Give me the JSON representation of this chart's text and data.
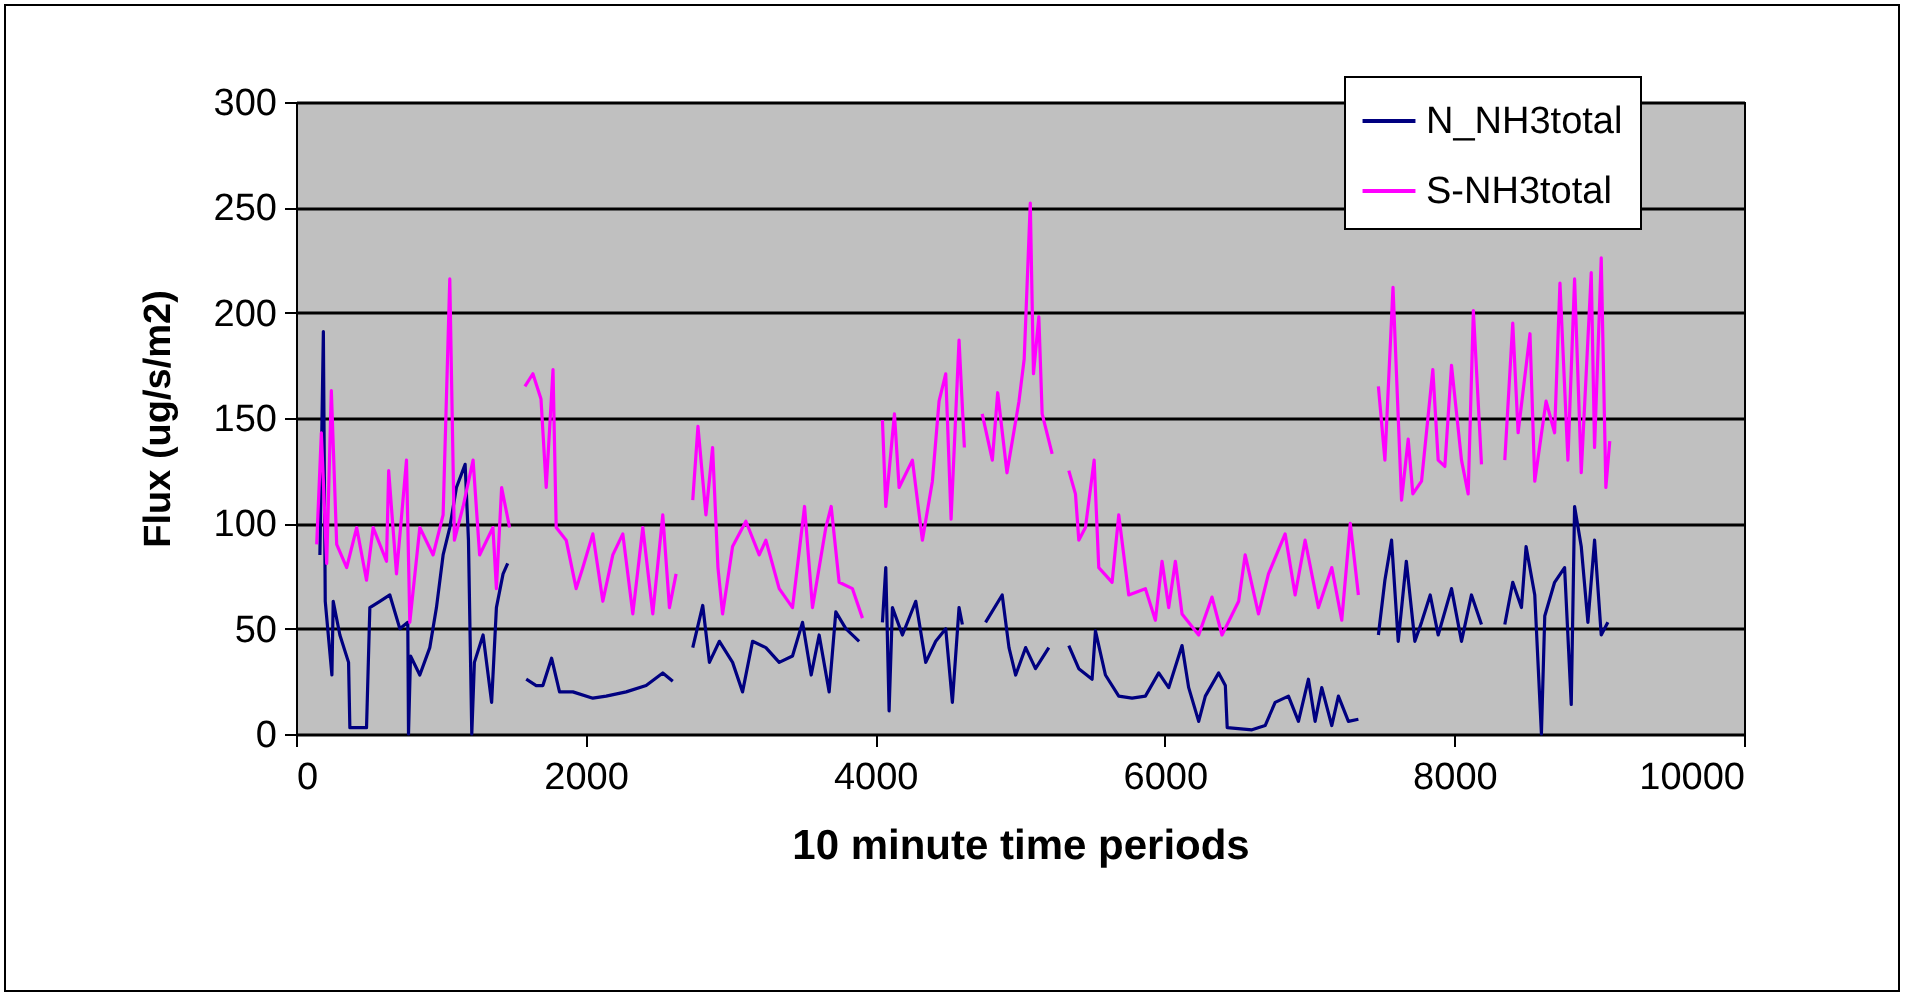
{
  "chart_data": {
    "type": "line",
    "xlabel": "10 minute time periods",
    "ylabel": "Flux (ug/s/m2)",
    "xlim": [
      0,
      10000
    ],
    "xticks": [
      0,
      2000,
      4000,
      6000,
      8000,
      10000
    ],
    "ylim": [
      0,
      300
    ],
    "yticks": [
      0,
      50,
      100,
      150,
      200,
      250,
      300
    ],
    "grid": "y",
    "legend": "top right",
    "marker": "none",
    "line_style": "solid",
    "series": [
      {
        "name": "N_NH3total",
        "color": "#000080",
        "x": [
          165,
          189,
          202,
          248,
          257,
          303,
          363,
          372,
          487,
          510,
          579,
          648,
          717,
          772,
          777,
          791,
          855,
          924,
          970,
          1016,
          1062,
          1108,
          1168,
          1191,
          1214,
          1232,
          1292,
          1351,
          1384,
          1430,
          1462,
          1525,
          1590,
          1659,
          1705,
          1765,
          1820,
          1912,
          2050,
          2142,
          2280,
          2418,
          2533,
          2602,
          2670,
          2740,
          2809,
          2855,
          2924,
          3015,
          3084,
          3153,
          3245,
          3337,
          3429,
          3498,
          3558,
          3613,
          3682,
          3728,
          3797,
          3889,
          3970,
          4050,
          4073,
          4096,
          4119,
          4188,
          4280,
          4349,
          4418,
          4487,
          4533,
          4579,
          4602,
          4680,
          4762,
          4877,
          4924,
          4970,
          5039,
          5107,
          5199,
          5270,
          5337,
          5406,
          5498,
          5521,
          5590,
          5682,
          5774,
          5866,
          5958,
          6027,
          6119,
          6165,
          6234,
          6280,
          6372,
          6418,
          6431,
          6602,
          6693,
          6762,
          6854,
          6923,
          6992,
          7038,
          7084,
          7153,
          7199,
          7268,
          7337,
          7400,
          7475,
          7520,
          7566,
          7612,
          7668,
          7727,
          7773,
          7833,
          7888,
          7980,
          8049,
          8118,
          8187,
          8270,
          8348,
          8403,
          8463,
          8495,
          8555,
          8601,
          8624,
          8692,
          8761,
          8807,
          8830,
          8876,
          8922,
          8968,
          9014,
          9060
        ],
        "values": [
          85,
          191,
          63,
          28,
          63,
          47,
          34,
          3,
          3,
          60,
          63,
          66,
          50,
          53,
          0,
          37,
          28,
          41,
          60,
          85,
          98,
          117,
          128,
          92,
          0,
          34,
          47,
          15,
          60,
          76,
          81,
          null,
          26,
          23,
          23,
          36,
          20,
          20,
          17,
          18,
          20,
          23,
          29,
          25,
          null,
          41,
          61,
          34,
          44,
          34,
          20,
          44,
          41,
          34,
          37,
          53,
          28,
          47,
          20,
          58,
          50,
          44,
          null,
          53,
          79,
          11,
          60,
          47,
          63,
          34,
          44,
          50,
          15,
          60,
          52,
          null,
          53,
          66,
          41,
          28,
          41,
          31,
          41,
          null,
          42,
          31,
          26,
          49,
          28,
          18,
          17,
          18,
          29,
          22,
          42,
          22,
          6,
          18,
          29,
          23,
          3,
          2,
          4,
          15,
          18,
          6,
          26,
          6,
          22,
          4,
          18,
          6,
          7,
          null,
          47,
          73,
          92,
          44,
          82,
          44,
          53,
          66,
          47,
          69,
          44,
          66,
          52,
          null,
          52,
          72,
          60,
          89,
          66,
          0,
          56,
          72,
          79,
          14,
          108,
          89,
          53,
          92,
          47,
          53
        ]
      },
      {
        "name": "S-NH3total",
        "color": "#ff00ff",
        "x": [
          143,
          175,
          212,
          244,
          281,
          350,
          419,
          487,
          533,
          625,
          640,
          694,
          763,
          786,
          855,
          947,
          1016,
          1062,
          1094,
          1154,
          1223,
          1268,
          1360,
          1384,
          1420,
          1475,
          1530,
          1581,
          1636,
          1692,
          1728,
          1775,
          1797,
          1866,
          1935,
          1981,
          2050,
          2119,
          2188,
          2257,
          2326,
          2395,
          2464,
          2533,
          2579,
          2625,
          2680,
          2740,
          2776,
          2831,
          2877,
          2914,
          2946,
          3015,
          3107,
          3199,
          3245,
          3337,
          3429,
          3512,
          3567,
          3659,
          3696,
          3751,
          3843,
          3912,
          3980,
          4050,
          4073,
          4133,
          4165,
          4257,
          4326,
          4395,
          4441,
          4487,
          4524,
          4579,
          4616,
          4680,
          4739,
          4809,
          4846,
          4910,
          4993,
          5029,
          5071,
          5093,
          5130,
          5153,
          5222,
          5280,
          5337,
          5383,
          5406,
          5452,
          5512,
          5544,
          5636,
          5682,
          5751,
          5866,
          5935,
          5981,
          6027,
          6073,
          6119,
          6234,
          6326,
          6395,
          6510,
          6555,
          6647,
          6716,
          6831,
          6900,
          6969,
          7061,
          7153,
          7222,
          7281,
          7337,
          7400,
          7475,
          7520,
          7576,
          7635,
          7681,
          7713,
          7773,
          7851,
          7888,
          7934,
          7980,
          8049,
          8095,
          8131,
          8187,
          8270,
          8348,
          8403,
          8440,
          8522,
          8555,
          8633,
          8692,
          8729,
          8784,
          8830,
          8876,
          8945,
          8968,
          9014,
          9046,
          9073
        ],
        "values": [
          90,
          143,
          81,
          163,
          90,
          79,
          98,
          73,
          98,
          82,
          125,
          76,
          130,
          53,
          98,
          85,
          104,
          216,
          92,
          108,
          130,
          85,
          98,
          69,
          117,
          98,
          null,
          165,
          171,
          159,
          117,
          173,
          98,
          92,
          69,
          79,
          95,
          63,
          85,
          95,
          57,
          98,
          57,
          104,
          60,
          76,
          null,
          111,
          146,
          104,
          136,
          79,
          57,
          89,
          101,
          85,
          92,
          69,
          60,
          108,
          60,
          98,
          108,
          72,
          69,
          55,
          null,
          149,
          108,
          152,
          117,
          130,
          92,
          120,
          158,
          171,
          102,
          187,
          136,
          null,
          152,
          130,
          162,
          124,
          158,
          178,
          252,
          171,
          198,
          152,
          133,
          null,
          125,
          114,
          92,
          98,
          130,
          79,
          72,
          104,
          66,
          69,
          54,
          82,
          60,
          82,
          57,
          47,
          65,
          47,
          63,
          85,
          57,
          76,
          95,
          66,
          92,
          60,
          79,
          54,
          100,
          66,
          null,
          165,
          130,
          212,
          111,
          140,
          114,
          120,
          173,
          130,
          127,
          175,
          130,
          114,
          201,
          128,
          null,
          130,
          195,
          143,
          190,
          120,
          158,
          143,
          214,
          130,
          216,
          124,
          219,
          136,
          226,
          117,
          139
        ]
      }
    ]
  }
}
